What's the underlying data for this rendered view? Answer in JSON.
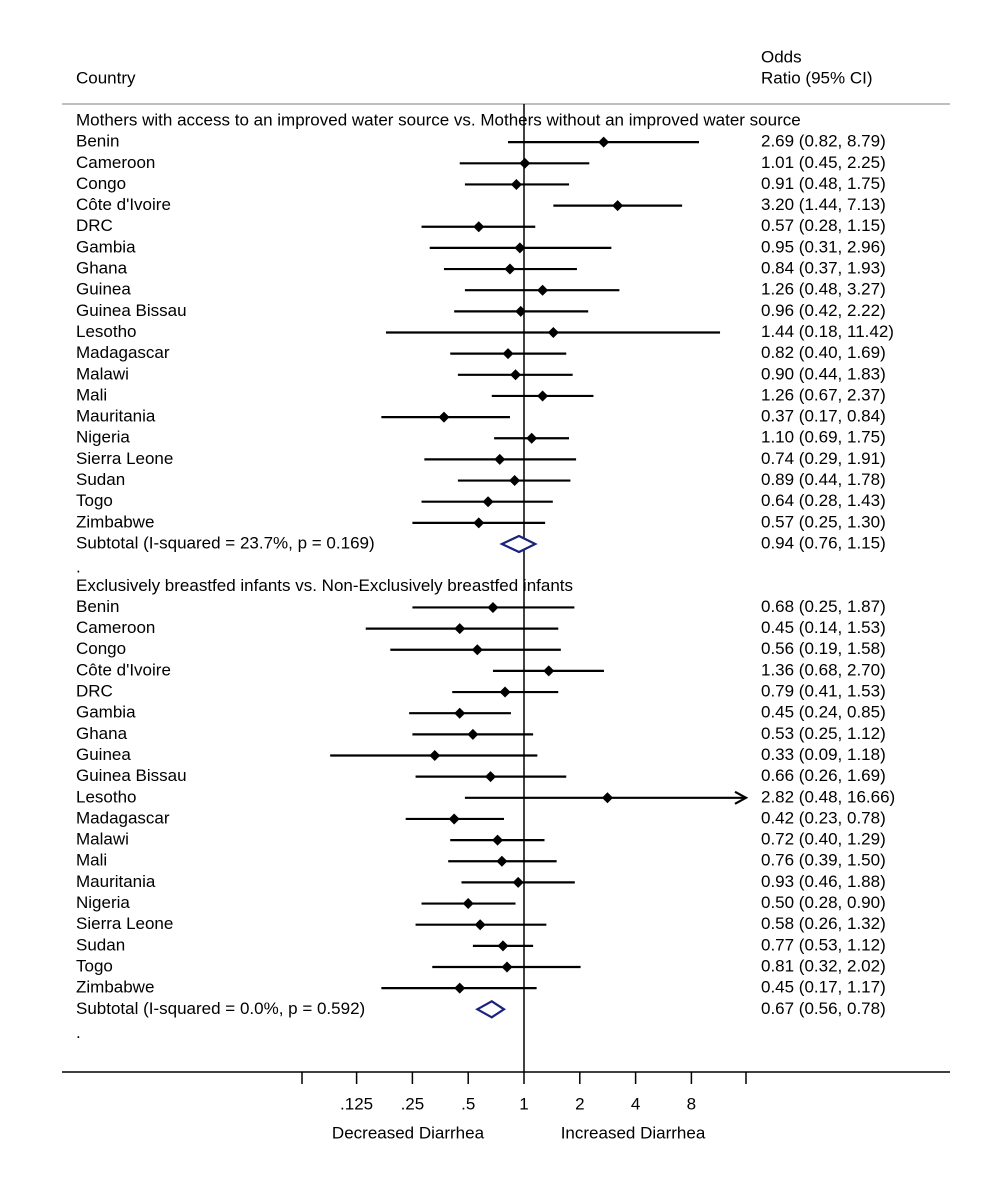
{
  "chart_data": {
    "type": "forest",
    "header": {
      "country_label": "Country",
      "or_label_line1": "Odds",
      "or_label_line2": "Ratio (95% CI)"
    },
    "x_scale": "log2",
    "xlim": [
      0.0625,
      16
    ],
    "ticks": [
      {
        "value": 0.125,
        "label": ".125"
      },
      {
        "value": 0.25,
        "label": ".25"
      },
      {
        "value": 0.5,
        "label": ".5"
      },
      {
        "value": 1,
        "label": "1"
      },
      {
        "value": 2,
        "label": "2"
      },
      {
        "value": 4,
        "label": "4"
      },
      {
        "value": 8,
        "label": "8"
      }
    ],
    "xlabel_left": "Decreased Diarrhea",
    "xlabel_right": "Increased Diarrhea",
    "groups": [
      {
        "title": "Mothers with access to an improved water source vs. Mothers without an improved water source",
        "studies": [
          {
            "country": "Benin",
            "or": 2.69,
            "lo": 0.82,
            "hi": 8.79,
            "label": "2.69 (0.82, 8.79)"
          },
          {
            "country": "Cameroon",
            "or": 1.01,
            "lo": 0.45,
            "hi": 2.25,
            "label": "1.01 (0.45, 2.25)"
          },
          {
            "country": "Congo",
            "or": 0.91,
            "lo": 0.48,
            "hi": 1.75,
            "label": "0.91 (0.48, 1.75)"
          },
          {
            "country": "Côte d'Ivoire",
            "or": 3.2,
            "lo": 1.44,
            "hi": 7.13,
            "label": "3.20 (1.44, 7.13)"
          },
          {
            "country": "DRC",
            "or": 0.57,
            "lo": 0.28,
            "hi": 1.15,
            "label": "0.57 (0.28, 1.15)"
          },
          {
            "country": "Gambia",
            "or": 0.95,
            "lo": 0.31,
            "hi": 2.96,
            "label": "0.95 (0.31, 2.96)"
          },
          {
            "country": "Ghana",
            "or": 0.84,
            "lo": 0.37,
            "hi": 1.93,
            "label": "0.84 (0.37, 1.93)"
          },
          {
            "country": "Guinea",
            "or": 1.26,
            "lo": 0.48,
            "hi": 3.27,
            "label": "1.26 (0.48, 3.27)"
          },
          {
            "country": "Guinea Bissau",
            "or": 0.96,
            "lo": 0.42,
            "hi": 2.22,
            "label": "0.96 (0.42, 2.22)"
          },
          {
            "country": "Lesotho",
            "or": 1.44,
            "lo": 0.18,
            "hi": 11.42,
            "label": "1.44 (0.18, 11.42)"
          },
          {
            "country": "Madagascar",
            "or": 0.82,
            "lo": 0.4,
            "hi": 1.69,
            "label": "0.82 (0.40, 1.69)"
          },
          {
            "country": "Malawi",
            "or": 0.9,
            "lo": 0.44,
            "hi": 1.83,
            "label": "0.90 (0.44, 1.83)"
          },
          {
            "country": "Mali",
            "or": 1.26,
            "lo": 0.67,
            "hi": 2.37,
            "label": "1.26 (0.67, 2.37)"
          },
          {
            "country": "Mauritania",
            "or": 0.37,
            "lo": 0.17,
            "hi": 0.84,
            "label": "0.37 (0.17, 0.84)"
          },
          {
            "country": "Nigeria",
            "or": 1.1,
            "lo": 0.69,
            "hi": 1.75,
            "label": "1.10 (0.69, 1.75)"
          },
          {
            "country": "Sierra Leone",
            "or": 0.74,
            "lo": 0.29,
            "hi": 1.91,
            "label": "0.74 (0.29, 1.91)"
          },
          {
            "country": "Sudan",
            "or": 0.89,
            "lo": 0.44,
            "hi": 1.78,
            "label": "0.89 (0.44, 1.78)"
          },
          {
            "country": "Togo",
            "or": 0.64,
            "lo": 0.28,
            "hi": 1.43,
            "label": "0.64 (0.28, 1.43)"
          },
          {
            "country": "Zimbabwe",
            "or": 0.57,
            "lo": 0.25,
            "hi": 1.3,
            "label": "0.57 (0.25, 1.30)"
          }
        ],
        "subtotal": {
          "label": "Subtotal  (I-squared = 23.7%, p = 0.169)",
          "or": 0.94,
          "lo": 0.76,
          "hi": 1.15,
          "or_label": "0.94 (0.76, 1.15)"
        }
      },
      {
        "title": "Exclusively breastfed infants vs. Non-Exclusively breastfed infants",
        "studies": [
          {
            "country": "Benin",
            "or": 0.68,
            "lo": 0.25,
            "hi": 1.87,
            "label": "0.68 (0.25, 1.87)"
          },
          {
            "country": "Cameroon",
            "or": 0.45,
            "lo": 0.14,
            "hi": 1.53,
            "label": "0.45 (0.14, 1.53)"
          },
          {
            "country": "Congo",
            "or": 0.56,
            "lo": 0.19,
            "hi": 1.58,
            "label": "0.56 (0.19, 1.58)"
          },
          {
            "country": "Côte d'Ivoire",
            "or": 1.36,
            "lo": 0.68,
            "hi": 2.7,
            "label": "1.36 (0.68, 2.70)"
          },
          {
            "country": "DRC",
            "or": 0.79,
            "lo": 0.41,
            "hi": 1.53,
            "label": "0.79 (0.41, 1.53)"
          },
          {
            "country": "Gambia",
            "or": 0.45,
            "lo": 0.24,
            "hi": 0.85,
            "label": "0.45 (0.24, 0.85)"
          },
          {
            "country": "Ghana",
            "or": 0.53,
            "lo": 0.25,
            "hi": 1.12,
            "label": "0.53 (0.25, 1.12)"
          },
          {
            "country": "Guinea",
            "or": 0.33,
            "lo": 0.09,
            "hi": 1.18,
            "label": "0.33 (0.09, 1.18)"
          },
          {
            "country": "Guinea Bissau",
            "or": 0.66,
            "lo": 0.26,
            "hi": 1.69,
            "label": "0.66 (0.26, 1.69)"
          },
          {
            "country": "Lesotho",
            "or": 2.82,
            "lo": 0.48,
            "hi": 16.66,
            "label": "2.82 (0.48, 16.66)"
          },
          {
            "country": "Madagascar",
            "or": 0.42,
            "lo": 0.23,
            "hi": 0.78,
            "label": "0.42 (0.23, 0.78)"
          },
          {
            "country": "Malawi",
            "or": 0.72,
            "lo": 0.4,
            "hi": 1.29,
            "label": "0.72 (0.40, 1.29)"
          },
          {
            "country": "Mali",
            "or": 0.76,
            "lo": 0.39,
            "hi": 1.5,
            "label": "0.76 (0.39, 1.50)"
          },
          {
            "country": "Mauritania",
            "or": 0.93,
            "lo": 0.46,
            "hi": 1.88,
            "label": "0.93 (0.46, 1.88)"
          },
          {
            "country": "Nigeria",
            "or": 0.5,
            "lo": 0.28,
            "hi": 0.9,
            "label": "0.50 (0.28, 0.90)"
          },
          {
            "country": "Sierra Leone",
            "or": 0.58,
            "lo": 0.26,
            "hi": 1.32,
            "label": "0.58 (0.26, 1.32)"
          },
          {
            "country": "Sudan",
            "or": 0.77,
            "lo": 0.53,
            "hi": 1.12,
            "label": "0.77 (0.53, 1.12)"
          },
          {
            "country": "Togo",
            "or": 0.81,
            "lo": 0.32,
            "hi": 2.02,
            "label": "0.81 (0.32, 2.02)"
          },
          {
            "country": "Zimbabwe",
            "or": 0.45,
            "lo": 0.17,
            "hi": 1.17,
            "label": "0.45 (0.17, 1.17)"
          }
        ],
        "subtotal": {
          "label": "Subtotal  (I-squared = 0.0%, p = 0.592)",
          "or": 0.67,
          "lo": 0.56,
          "hi": 0.78,
          "or_label": "0.67 (0.56, 0.78)"
        }
      }
    ],
    "group_separator": ".",
    "colors": {
      "ink": "#000000",
      "diamond": "#1a237e",
      "header_rule": "#bfbfbf"
    }
  }
}
